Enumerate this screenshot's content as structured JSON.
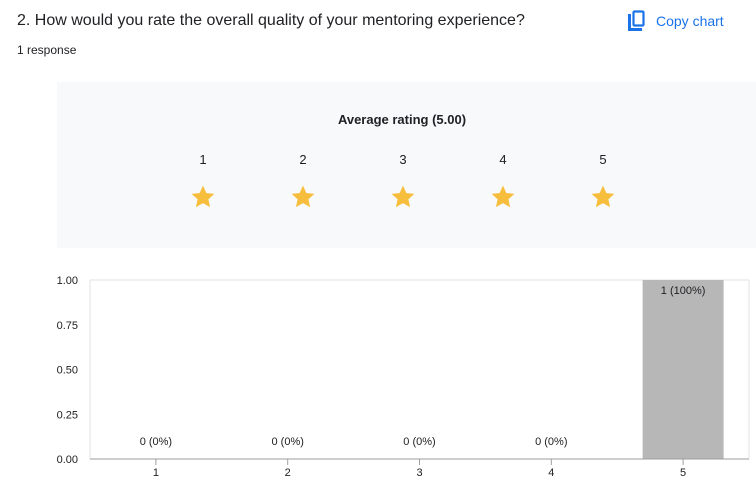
{
  "question": {
    "title": "2. How would you rate the overall quality of your mentoring experience?",
    "response_count": "1 response"
  },
  "toolbar": {
    "copy_label": "Copy chart",
    "copy_icon": "copy-icon"
  },
  "rating_summary": {
    "title": "Average rating (5.00)",
    "scale": [
      "1",
      "2",
      "3",
      "4",
      "5"
    ],
    "average": 5.0,
    "star_color": "#f6be3c"
  },
  "chart_data": {
    "type": "bar",
    "categories": [
      "1",
      "2",
      "3",
      "4",
      "5"
    ],
    "values": [
      0,
      0,
      0,
      0,
      1
    ],
    "data_labels": [
      "0 (0%)",
      "0 (0%)",
      "0 (0%)",
      "0 (0%)",
      "1 (100%)"
    ],
    "yticks": [
      "0.00",
      "0.25",
      "0.50",
      "0.75",
      "1.00"
    ],
    "ylim": [
      0,
      1
    ],
    "grid": false,
    "bar_color": "#b7b7b7",
    "label_color_inside": "#202124"
  }
}
